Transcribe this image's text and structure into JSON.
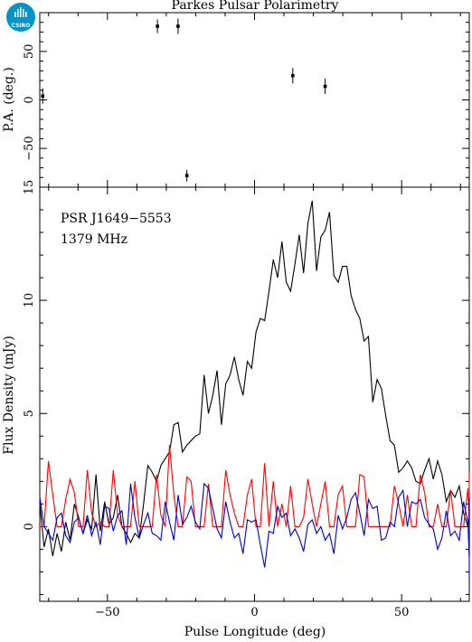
{
  "chart_data": [
    {
      "type": "scatter",
      "title": "Parkes Pulsar Polarimetry",
      "ylabel": "P.A. (deg.)",
      "xlim": [
        -73,
        73
      ],
      "ylim": [
        -90,
        90
      ],
      "yticks": [
        50,
        0,
        -50
      ],
      "x": [
        -72,
        -33,
        -26,
        -23,
        13,
        24
      ],
      "values": [
        4,
        76,
        76,
        -78,
        25,
        14
      ],
      "errors": [
        8,
        7,
        8,
        6,
        8,
        8
      ],
      "color": "#000000",
      "logo": {
        "text": "CSIRO",
        "color": "#0095c8"
      }
    },
    {
      "type": "line",
      "xlabel": "Pulse Longitude (deg)",
      "ylabel": "Flux Density (mJy)",
      "xlim": [
        -73,
        73
      ],
      "ylim": [
        -3.3,
        15
      ],
      "xticks": [
        -50,
        0,
        50
      ],
      "yticks": [
        15,
        10,
        5,
        0
      ],
      "annotations": [
        "PSR J1649−5553",
        "1379 MHz"
      ],
      "x_start": -73,
      "x_step": 1.47,
      "series": [
        {
          "color": "#000000",
          "values": [
            1.0,
            -0.9,
            -0.1,
            -1.3,
            -0.3,
            -1.1,
            0.2,
            -0.6,
            1.0,
            0.4,
            -0.3,
            0.3,
            -0.1,
            2.3,
            -0.2,
            1.1,
            0.1,
            0.4,
            1.4,
            0.0,
            -0.3,
            -0.7,
            -0.3,
            -0.5,
            1.0,
            2.7,
            2.4,
            2.0,
            2.7,
            3.0,
            3.3,
            4.5,
            4.6,
            3.3,
            3.6,
            3.8,
            4.0,
            4.1,
            6.7,
            5.0,
            5.8,
            6.9,
            4.5,
            6.3,
            6.7,
            7.5,
            6.5,
            5.8,
            7.3,
            7.0,
            8.6,
            9.2,
            9.1,
            10.4,
            11.8,
            11.0,
            12.6,
            10.8,
            10.4,
            11.6,
            12.9,
            11.2,
            13.4,
            14.4,
            11.3,
            12.8,
            13.1,
            13.9,
            11.1,
            10.8,
            11.5,
            11.5,
            10.2,
            9.6,
            9.2,
            8.2,
            8.4,
            5.5,
            6.5,
            6.1,
            4.9,
            3.8,
            3.6,
            2.4,
            2.6,
            2.9,
            2.6,
            2.0,
            1.9,
            2.5,
            3.0,
            2.1,
            2.9,
            2.3,
            1.1,
            1.6,
            1.3,
            1.8,
            0.6,
            0.0,
            0.6,
            0.3,
            0.1,
            -0.1,
            1.5,
            0.8,
            0.1,
            0.5,
            1.0,
            -0.2,
            0.2,
            1.0,
            0.6,
            0.8,
            0.1,
            -0.8,
            -0.6,
            0.8,
            -0.8,
            0.0,
            -0.2,
            -0.8,
            0.0,
            1.0,
            0.7,
            0.2,
            -0.5,
            1.2,
            -1.0,
            -0.2,
            0.2,
            0.6,
            0.3,
            0.5,
            1.1,
            0.5,
            -0.5,
            0.3,
            0.9,
            -1.3,
            -1.0,
            -0.3
          ]
        },
        {
          "color": "#ff0000",
          "values": [
            0.0,
            0.0,
            2.9,
            1.4,
            0.0,
            0.0,
            1.2,
            2.1,
            1.5,
            0.0,
            0.0,
            2.5,
            0.6,
            0.0,
            0.2,
            0.0,
            0.0,
            2.5,
            0.5,
            0.0,
            0.0,
            0.0,
            2.0,
            0.0,
            0.0,
            0.0,
            0.0,
            2.3,
            0.5,
            0.0,
            3.6,
            1.4,
            0.0,
            0.0,
            2.2,
            2.0,
            0.0,
            0.0,
            0.0,
            1.9,
            0.0,
            0.0,
            0.0,
            2.5,
            1.4,
            0.6,
            0.0,
            0.0,
            1.4,
            2.1,
            0.0,
            0.0,
            2.8,
            0.0,
            2.0,
            0.0,
            1.0,
            0.0,
            1.8,
            0.0,
            0.0,
            0.4,
            2.1,
            1.0,
            0.0,
            1.0,
            2.0,
            0.0,
            0.0,
            1.4,
            1.8,
            0.0,
            0.0,
            0.0,
            2.3,
            2.2,
            0.0,
            0.0,
            0.0,
            0.0,
            0.0,
            0.0,
            1.8,
            1.0,
            0.0,
            1.4,
            0.0,
            0.0,
            2.3,
            1.5,
            0.0,
            0.0,
            1.0,
            0.0,
            0.0,
            1.6,
            0.0,
            0.0,
            0.0,
            1.7,
            0.0,
            0.0,
            0.0,
            0.0,
            0.0,
            0.7,
            1.2,
            0.0,
            0.4,
            2.3,
            0.5,
            0.0,
            0.0,
            0.9,
            2.3,
            1.3,
            1.5,
            0.0,
            0.0,
            0.0,
            0.0,
            0.0,
            1.2,
            2.3,
            2.0,
            0.0,
            0.4,
            0.0,
            0.0,
            2.4,
            0.0,
            0.0,
            0.0,
            1.8,
            0.7,
            0.0,
            0.0,
            0.0,
            2.1,
            0.0,
            1.0,
            1.2,
            0.0,
            0.0
          ]
        },
        {
          "color": "#0000cc",
          "values": [
            1.3,
            0.0,
            -0.3,
            -0.6,
            0.4,
            0.6,
            -0.4,
            -0.7,
            0.2,
            0.4,
            -0.3,
            0.5,
            -0.4,
            0.2,
            -0.8,
            0.9,
            0.8,
            -0.2,
            0.5,
            0.7,
            -0.8,
            1.9,
            0.4,
            -0.5,
            0.1,
            0.6,
            -0.3,
            -0.4,
            -0.6,
            1.1,
            0.2,
            -0.6,
            1.4,
            0.1,
            0.4,
            0.9,
            0.2,
            -0.1,
            1.9,
            1.7,
            0.8,
            -0.1,
            -0.5,
            1.1,
            0.2,
            -0.5,
            -0.3,
            -1.2,
            0.3,
            0.2,
            0.3,
            -0.8,
            -1.8,
            -0.2,
            -0.3,
            0.9,
            0.4,
            0.6,
            -0.4,
            -0.1,
            -0.5,
            -1.1,
            0.1,
            0.3,
            -0.3,
            0.0,
            -0.6,
            -0.3,
            -1.2,
            0.5,
            -0.1,
            0.4,
            1.2,
            1.5,
            0.6,
            -0.4,
            1.2,
            0.8,
            0.9,
            -0.6,
            -0.5,
            0.2,
            0.0,
            1.3,
            1.6,
            0.0,
            1.1,
            1.0,
            1.2,
            0.4,
            0.1,
            -0.1,
            -1.0,
            -0.5,
            0.7,
            -0.4,
            -0.2,
            -0.6,
            1.1,
            0.2,
            -1.4,
            -1.8,
            0.6,
            -0.2,
            -0.8,
            -1.2,
            -0.7,
            0.6,
            -0.4,
            0.3,
            -1.6,
            -0.6,
            0.2,
            0.4,
            -0.6,
            -1.0,
            -0.3,
            0.8,
            -0.9,
            -0.5,
            -2.3,
            0.9,
            0.2,
            0.3,
            -0.6,
            -1.0,
            0.5,
            -0.1,
            0.8,
            -0.4,
            -0.8,
            1.0,
            0.7,
            -1.4,
            1.3,
            -0.1,
            -0.7,
            -0.9,
            0.2,
            -1.8,
            1.2,
            0.5,
            -1.5,
            0.0
          ]
        }
      ]
    }
  ]
}
